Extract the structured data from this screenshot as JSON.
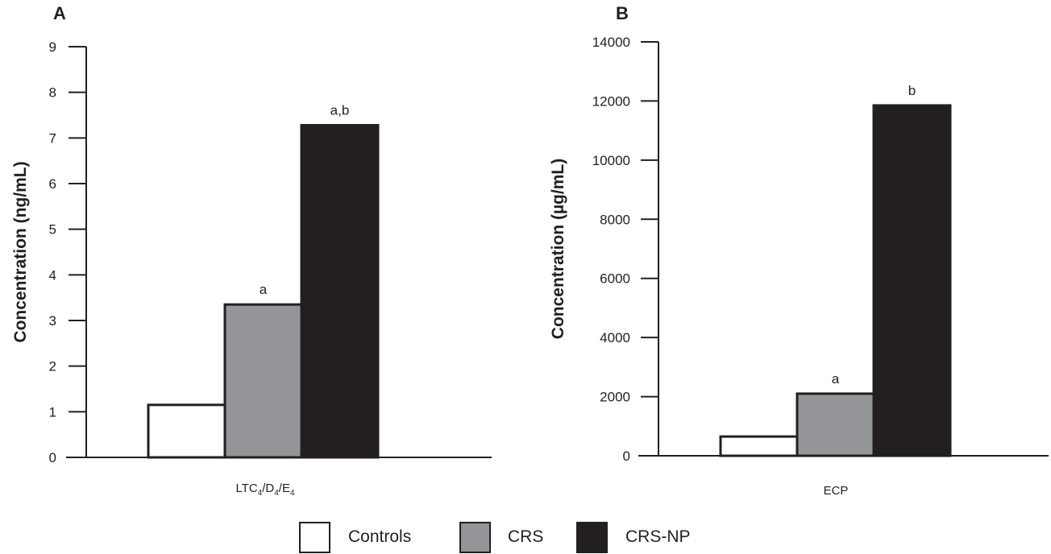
{
  "series_names": [
    "Controls",
    "CRS",
    "CRS-NP"
  ],
  "colors": {
    "Controls": "#ffffff",
    "CRS": "#939598",
    "CRS-NP": "#231f20",
    "ink": "#231f20"
  },
  "legend": {
    "placement": "bottom-center",
    "items": [
      {
        "name": "Controls",
        "color": "#ffffff"
      },
      {
        "name": "CRS",
        "color": "#939598"
      },
      {
        "name": "CRS-NP",
        "color": "#231f20"
      }
    ]
  },
  "chart_data": [
    {
      "panel": "A",
      "type": "bar",
      "title": "",
      "ylabel": "Concentration (ng/mL)",
      "xlabel": "",
      "category": {
        "main": "LTC",
        "parts": [
          "4",
          "/D",
          "4",
          "/E",
          "4"
        ]
      },
      "categories": [
        "LTC4/D4/E4"
      ],
      "ylim": [
        0,
        9
      ],
      "yticks": [
        0,
        1,
        2,
        3,
        4,
        5,
        6,
        7,
        8,
        9
      ],
      "grid": false,
      "series": [
        {
          "name": "Controls",
          "values": [
            1.15
          ],
          "label": ""
        },
        {
          "name": "CRS",
          "values": [
            3.35
          ],
          "label": "a"
        },
        {
          "name": "CRS-NP",
          "values": [
            7.28
          ],
          "label": "a,b"
        }
      ]
    },
    {
      "panel": "B",
      "type": "bar",
      "title": "",
      "ylabel": "Concentration (µg/mL)",
      "xlabel": "",
      "category": {
        "main": "ECP",
        "parts": []
      },
      "categories": [
        "ECP"
      ],
      "ylim": [
        0,
        14000
      ],
      "yticks": [
        0,
        2000,
        4000,
        6000,
        8000,
        10000,
        12000,
        14000
      ],
      "grid": false,
      "series": [
        {
          "name": "Controls",
          "values": [
            650
          ],
          "label": ""
        },
        {
          "name": "CRS",
          "values": [
            2100
          ],
          "label": "a"
        },
        {
          "name": "CRS-NP",
          "values": [
            11850
          ],
          "label": "b"
        }
      ]
    }
  ]
}
